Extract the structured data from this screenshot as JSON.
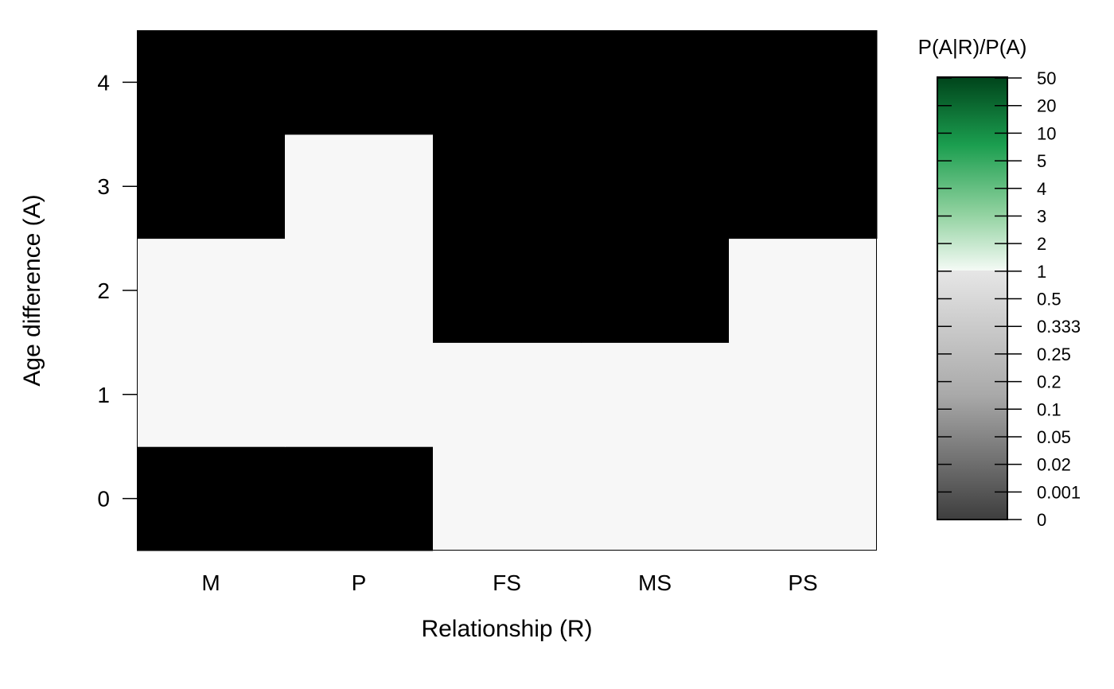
{
  "chart_data": {
    "type": "heatmap",
    "title": "",
    "xlabel": "Relationship (R)",
    "ylabel": "Age difference (A)",
    "x_categories": [
      "M",
      "P",
      "FS",
      "MS",
      "PS"
    ],
    "y_categories": [
      "0",
      "1",
      "2",
      "3",
      "4"
    ],
    "cell_values": [
      {
        "row": "0",
        "values": [
          0,
          0,
          1,
          1,
          1
        ]
      },
      {
        "row": "1",
        "values": [
          1,
          1,
          1,
          1,
          1
        ]
      },
      {
        "row": "2",
        "values": [
          1,
          1,
          0,
          0,
          1
        ]
      },
      {
        "row": "3",
        "values": [
          0,
          1,
          0,
          0,
          0
        ]
      },
      {
        "row": "4",
        "values": [
          0,
          0,
          0,
          0,
          0
        ]
      }
    ],
    "colorbar": {
      "title": "P(A|R)/P(A)",
      "tick_labels": [
        "0",
        "0.001",
        "0.02",
        "0.05",
        "0.1",
        "0.2",
        "0.25",
        "0.333",
        "0.5",
        "1",
        "2",
        "3",
        "4",
        "5",
        "10",
        "20",
        "50"
      ],
      "low_color": "#000000",
      "mid_color": "#f7f7f7",
      "high_color": "#00441b",
      "neutral_value": "1"
    }
  }
}
